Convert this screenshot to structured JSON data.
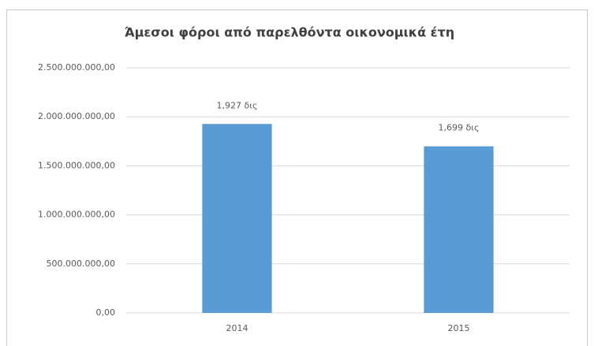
{
  "chart_data": {
    "type": "bar",
    "title": "Άμεσοι φόροι από παρελθόντα οικονομικά έτη",
    "categories": [
      "2014",
      "2015"
    ],
    "values": [
      1927000000,
      1699000000
    ],
    "value_labels": [
      "1,927 δις",
      "1,699 δις"
    ],
    "color": "#5b9bd5",
    "ylim": [
      0,
      2500000000
    ],
    "yticks": [
      {
        "value": 0,
        "label": "0,00"
      },
      {
        "value": 500000000,
        "label": "500.000.000,00"
      },
      {
        "value": 1000000000,
        "label": "1.000.000.000,00"
      },
      {
        "value": 1500000000,
        "label": "1.500.000.000,00"
      },
      {
        "value": 2000000000,
        "label": "2.000.000.000,00"
      },
      {
        "value": 2500000000,
        "label": "2.500.000.000,00"
      }
    ],
    "grid": true
  }
}
